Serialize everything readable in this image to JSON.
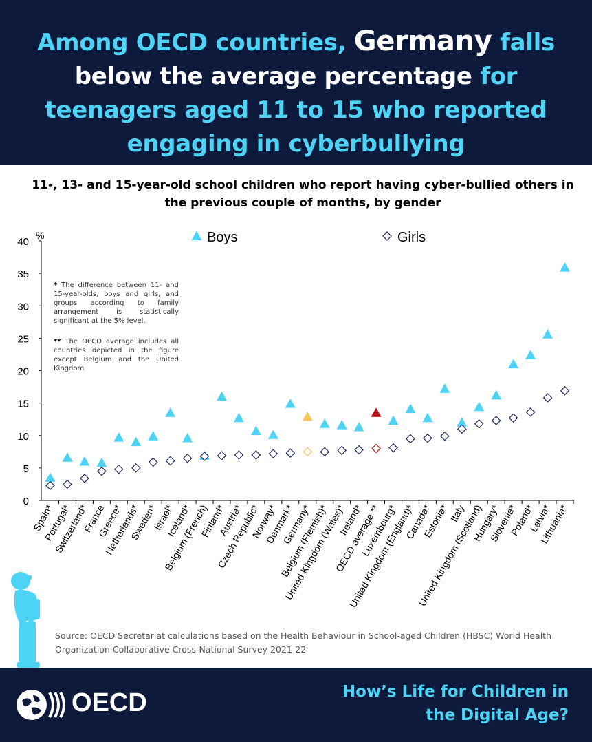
{
  "headline": {
    "part1": "Among OECD countries, ",
    "part2": "Germany",
    "part3": " falls ",
    "part4": "below the average percentage",
    "part5": " for teenagers aged 11 to 15 who reported engaging in cyberbullying"
  },
  "chart_data": {
    "type": "scatter",
    "title": "11-, 13- and 15-year-old school children who report having cyber-bullied others in the previous couple of months, by gender",
    "ylabel": "%",
    "ylim": [
      0,
      40
    ],
    "yticks": [
      0,
      5,
      10,
      15,
      20,
      25,
      30,
      35,
      40
    ],
    "categories": [
      "Spain*",
      "Portugal*",
      "Switzerland*",
      "France",
      "Greece*",
      "Netherlands*",
      "Sweden*",
      "Israel*",
      "Iceland*",
      "Belgium (French)",
      "Finland*",
      "Austria*",
      "Czech Republic*",
      "Norway*",
      "Denmark*",
      "Germany*",
      "Belgium (Flemish)*",
      "United Kingdom (Wales)*",
      "Ireland*",
      "OECD average **",
      "Luxembourg*",
      "United Kingdom (England)*",
      "Canada*",
      "Estonia*",
      "Italy",
      "United Kingdom (Scotland)",
      "Hungary*",
      "Slovenia*",
      "Poland*",
      "Latvia*",
      "Lithuania*"
    ],
    "series": [
      {
        "name": "Boys",
        "marker": "triangle",
        "values": [
          3.5,
          6.6,
          6.0,
          5.8,
          9.7,
          9.0,
          9.9,
          13.5,
          9.6,
          6.9,
          16.0,
          12.7,
          10.7,
          10.1,
          14.9,
          12.9,
          11.8,
          11.6,
          11.3,
          13.5,
          12.3,
          14.1,
          12.7,
          17.2,
          12.0,
          14.4,
          16.2,
          21.0,
          22.4,
          25.6,
          35.9
        ]
      },
      {
        "name": "Girls",
        "marker": "diamond",
        "values": [
          2.3,
          2.5,
          3.4,
          4.5,
          4.8,
          5.0,
          5.9,
          6.1,
          6.5,
          6.8,
          6.9,
          7.0,
          7.0,
          7.2,
          7.3,
          7.5,
          7.5,
          7.7,
          7.8,
          8.0,
          8.1,
          9.5,
          9.6,
          9.9,
          11.0,
          11.8,
          12.3,
          12.7,
          13.6,
          15.8,
          16.9
        ]
      }
    ],
    "highlight": [
      {
        "category": "Germany*",
        "color": "#f5c65c"
      },
      {
        "category": "OECD average **",
        "color": "#b40f0f"
      }
    ],
    "legend": "top",
    "grid": false
  },
  "notes": {
    "note1_mark": "*",
    "note1": "The difference between 11- and 15-year-olds, boys and girls, and groups according to family arrangement is statistically significant at the 5% level.",
    "note2_mark": "**",
    "note2": "The OECD average includes all countries depicted in the figure except Belgium and the United Kingdom"
  },
  "source": "Source: OECD Secretariat calculations based on the Health Behaviour in School-aged Children (HBSC) World Health Organization Collaborative Cross-National Survey 2021-22",
  "footer": {
    "logo_text": "OECD",
    "title": "How’s Life for Children in the Digital Age?"
  },
  "colors": {
    "navy": "#0e1a3c",
    "cyan": "#4cd3f5",
    "boys": "#4cd3f5",
    "girls": "#1f2a5c"
  }
}
